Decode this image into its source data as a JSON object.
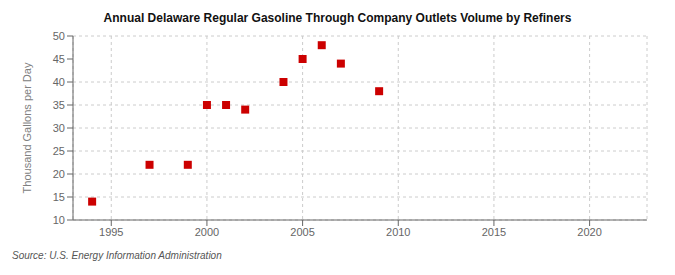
{
  "chart_data": {
    "type": "scatter",
    "title": "Annual Delaware Regular Gasoline Through Company Outlets Volume by Refiners",
    "ylabel": "Thousand Gallons per Day",
    "annotation": "Source: U.S. Energy Information Administration",
    "x": [
      1994,
      1997,
      1999,
      2000,
      2001,
      2002,
      2004,
      2005,
      2006,
      2007,
      2009
    ],
    "values": [
      14,
      22,
      22,
      35,
      35,
      34,
      40,
      45,
      48,
      44,
      38
    ],
    "color": "#cc0000",
    "marker": "square",
    "xlim": [
      1993,
      2023
    ],
    "ylim": [
      10,
      50
    ],
    "xticks": [
      1995,
      2000,
      2005,
      2010,
      2015,
      2020
    ],
    "yticks": [
      10,
      15,
      20,
      25,
      30,
      35,
      40,
      45,
      50
    ],
    "grid": true
  }
}
